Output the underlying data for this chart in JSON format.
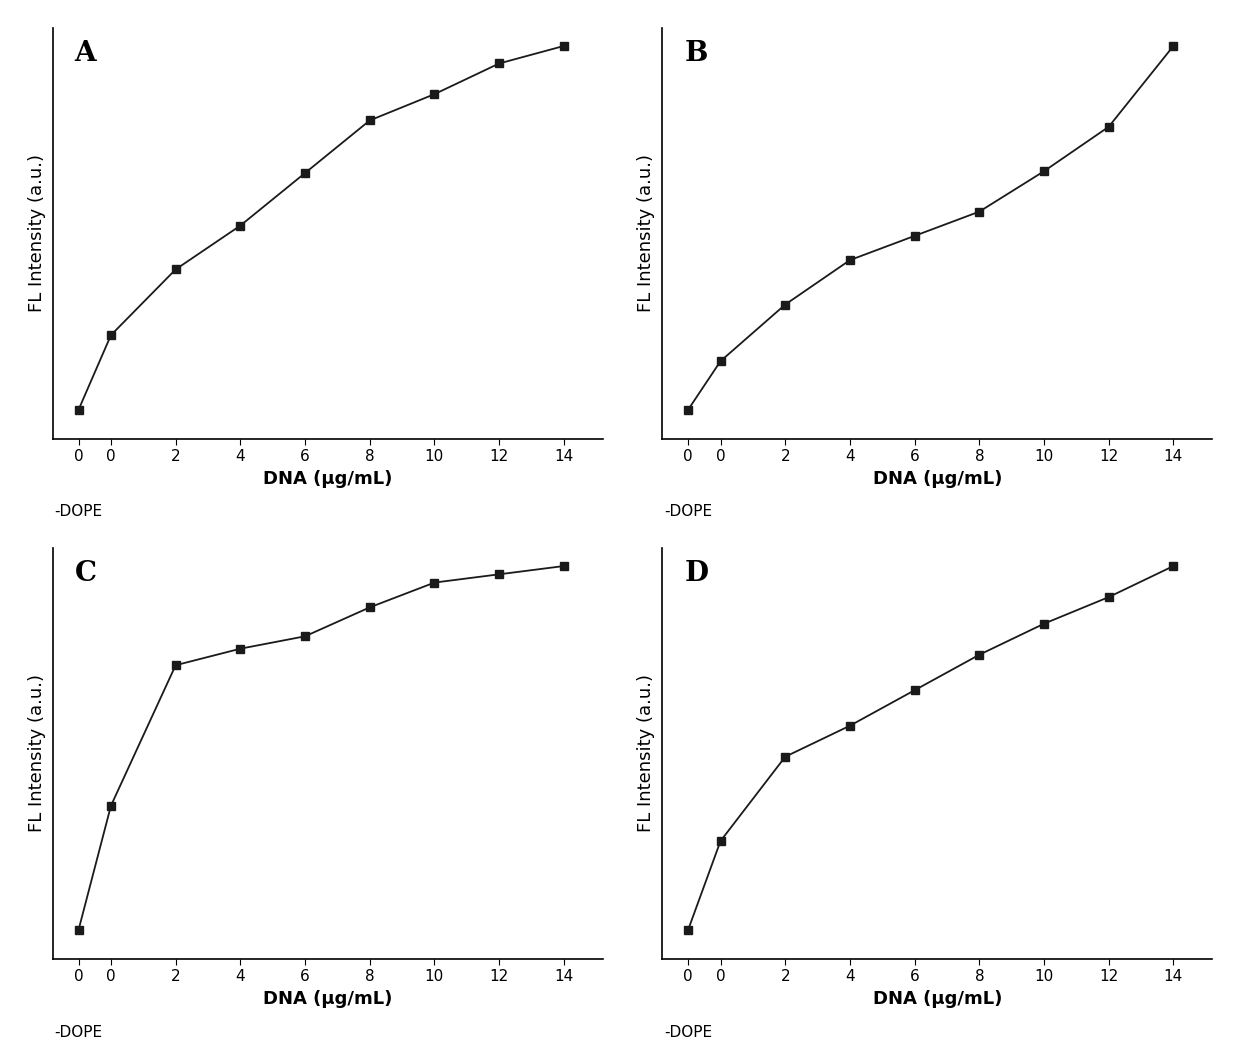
{
  "panels": [
    "A",
    "B",
    "C",
    "D"
  ],
  "xlabel": "DNA (μg/mL)",
  "ylabel": "FL Intensity (a.u.)",
  "A": {
    "x": [
      -1,
      0,
      2,
      4,
      6,
      8,
      10,
      12,
      14
    ],
    "y": [
      0.08,
      0.25,
      0.4,
      0.5,
      0.62,
      0.74,
      0.8,
      0.87,
      0.91
    ]
  },
  "B": {
    "x": [
      -1,
      0,
      2,
      4,
      6,
      8,
      10,
      12,
      14
    ],
    "y": [
      0.06,
      0.18,
      0.32,
      0.43,
      0.49,
      0.55,
      0.65,
      0.76,
      0.96
    ]
  },
  "C": {
    "x": [
      -1,
      0,
      2,
      4,
      6,
      8,
      10,
      12,
      14
    ],
    "y": [
      0.06,
      0.36,
      0.7,
      0.74,
      0.77,
      0.84,
      0.9,
      0.92,
      0.94
    ]
  },
  "D": {
    "x": [
      -1,
      0,
      2,
      4,
      6,
      8,
      10,
      12,
      14
    ],
    "y": [
      0.06,
      0.26,
      0.45,
      0.52,
      0.6,
      0.68,
      0.75,
      0.81,
      0.88
    ]
  },
  "x_ticks": [
    -1,
    0,
    2,
    4,
    6,
    8,
    10,
    12,
    14
  ],
  "x_tick_labels": [
    "0",
    "0",
    "2",
    "4",
    "6",
    "8",
    "10",
    "12",
    "14"
  ],
  "marker": "s",
  "markersize": 6,
  "linewidth": 1.3,
  "color": "#1a1a1a",
  "label_fontsize": 13,
  "tick_fontsize": 11,
  "panel_label_fontsize": 20,
  "xlim": [
    -1.8,
    15.2
  ],
  "dope_label": "-DOPE"
}
